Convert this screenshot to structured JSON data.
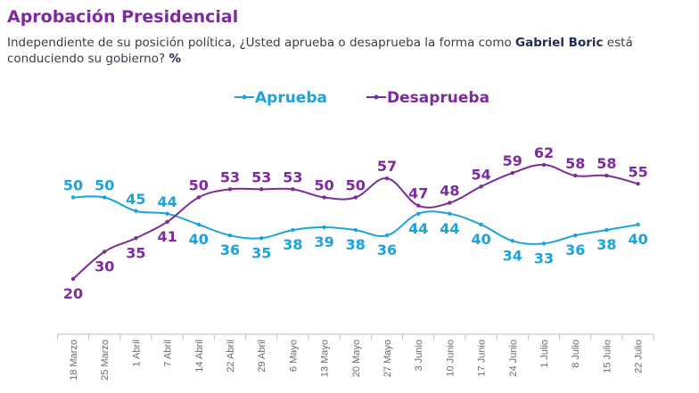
{
  "header": {
    "title": "Aprobación Presidencial",
    "subtitle_pre": "Independiente de su posición política, ¿Usted aprueba o desaprueba la forma como ",
    "subtitle_bold": "Gabriel Boric",
    "subtitle_post": " está conduciendo su gobierno? ",
    "subtitle_unit": "%"
  },
  "colors": {
    "aprueba": "#1aa3dc",
    "desaprueba": "#7d2a9e"
  },
  "chart_data": {
    "type": "line",
    "categories": [
      "18 Marzo",
      "25 Marzo",
      "1 Abril",
      "7 Abril",
      "14 Abril",
      "22 Abril",
      "29 Abril",
      "6 Mayo",
      "13 Mayo",
      "20 Mayo",
      "27 Mayo",
      "3 Junio",
      "10 Junio",
      "17 Junio",
      "24 Junio",
      "1 Julio",
      "8 Julio",
      "15 Julio",
      "22 Julio"
    ],
    "series": [
      {
        "name": "Aprueba",
        "values": [
          50,
          50,
          45,
          44,
          40,
          36,
          35,
          38,
          39,
          38,
          36,
          44,
          44,
          40,
          34,
          33,
          36,
          38,
          40
        ]
      },
      {
        "name": "Desaprueba",
        "values": [
          20,
          30,
          35,
          41,
          50,
          53,
          53,
          53,
          50,
          50,
          57,
          47,
          48,
          54,
          59,
          62,
          58,
          58,
          55
        ]
      }
    ],
    "legend_position": "top-center",
    "grid": false
  }
}
